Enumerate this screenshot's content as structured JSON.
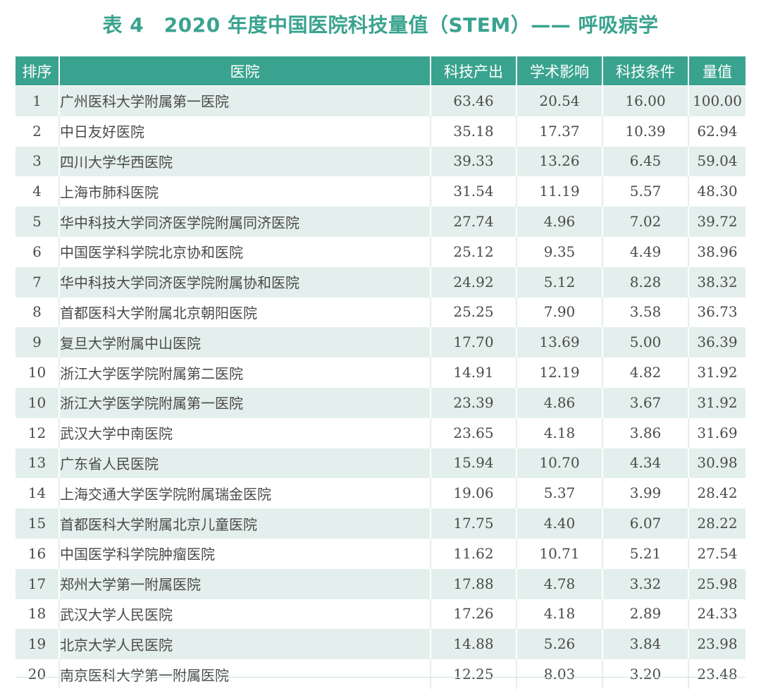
{
  "title": "表 4　2020 年度中国医院科技量值（STEM）—— 呼吸病学",
  "columns": [
    "排序",
    "医院",
    "科技产出",
    "学术影响",
    "科技条件",
    "量值"
  ],
  "colors": {
    "accent": "#3aa38f",
    "stripe": "#e3efec",
    "text": "#4a4a4a"
  },
  "rows": [
    {
      "rank": "1",
      "hospital": "广州医科大学附属第一医院",
      "output": "63.46",
      "impact": "20.54",
      "conditions": "16.00",
      "value": "100.00"
    },
    {
      "rank": "2",
      "hospital": "中日友好医院",
      "output": "35.18",
      "impact": "17.37",
      "conditions": "10.39",
      "value": "62.94"
    },
    {
      "rank": "3",
      "hospital": "四川大学华西医院",
      "output": "39.33",
      "impact": "13.26",
      "conditions": "6.45",
      "value": "59.04"
    },
    {
      "rank": "4",
      "hospital": "上海市肺科医院",
      "output": "31.54",
      "impact": "11.19",
      "conditions": "5.57",
      "value": "48.30"
    },
    {
      "rank": "5",
      "hospital": "华中科技大学同济医学院附属同济医院",
      "output": "27.74",
      "impact": "4.96",
      "conditions": "7.02",
      "value": "39.72"
    },
    {
      "rank": "6",
      "hospital": "中国医学科学院北京协和医院",
      "output": "25.12",
      "impact": "9.35",
      "conditions": "4.49",
      "value": "38.96"
    },
    {
      "rank": "7",
      "hospital": "华中科技大学同济医学院附属协和医院",
      "output": "24.92",
      "impact": "5.12",
      "conditions": "8.28",
      "value": "38.32"
    },
    {
      "rank": "8",
      "hospital": "首都医科大学附属北京朝阳医院",
      "output": "25.25",
      "impact": "7.90",
      "conditions": "3.58",
      "value": "36.73"
    },
    {
      "rank": "9",
      "hospital": "复旦大学附属中山医院",
      "output": "17.70",
      "impact": "13.69",
      "conditions": "5.00",
      "value": "36.39"
    },
    {
      "rank": "10",
      "hospital": "浙江大学医学院附属第二医院",
      "output": "14.91",
      "impact": "12.19",
      "conditions": "4.82",
      "value": "31.92"
    },
    {
      "rank": "10",
      "hospital": "浙江大学医学院附属第一医院",
      "output": "23.39",
      "impact": "4.86",
      "conditions": "3.67",
      "value": "31.92"
    },
    {
      "rank": "12",
      "hospital": "武汉大学中南医院",
      "output": "23.65",
      "impact": "4.18",
      "conditions": "3.86",
      "value": "31.69"
    },
    {
      "rank": "13",
      "hospital": "广东省人民医院",
      "output": "15.94",
      "impact": "10.70",
      "conditions": "4.34",
      "value": "30.98"
    },
    {
      "rank": "14",
      "hospital": "上海交通大学医学院附属瑞金医院",
      "output": "19.06",
      "impact": "5.37",
      "conditions": "3.99",
      "value": "28.42"
    },
    {
      "rank": "15",
      "hospital": "首都医科大学附属北京儿童医院",
      "output": "17.75",
      "impact": "4.40",
      "conditions": "6.07",
      "value": "28.22"
    },
    {
      "rank": "16",
      "hospital": "中国医学科学院肿瘤医院",
      "output": "11.62",
      "impact": "10.71",
      "conditions": "5.21",
      "value": "27.54"
    },
    {
      "rank": "17",
      "hospital": "郑州大学第一附属医院",
      "output": "17.88",
      "impact": "4.78",
      "conditions": "3.32",
      "value": "25.98"
    },
    {
      "rank": "18",
      "hospital": "武汉大学人民医院",
      "output": "17.26",
      "impact": "4.18",
      "conditions": "2.89",
      "value": "24.33"
    },
    {
      "rank": "19",
      "hospital": "北京大学人民医院",
      "output": "14.88",
      "impact": "5.26",
      "conditions": "3.84",
      "value": "23.98"
    },
    {
      "rank": "20",
      "hospital": "南京医科大学第一附属医院",
      "output": "12.25",
      "impact": "8.03",
      "conditions": "3.20",
      "value": "23.48"
    }
  ]
}
